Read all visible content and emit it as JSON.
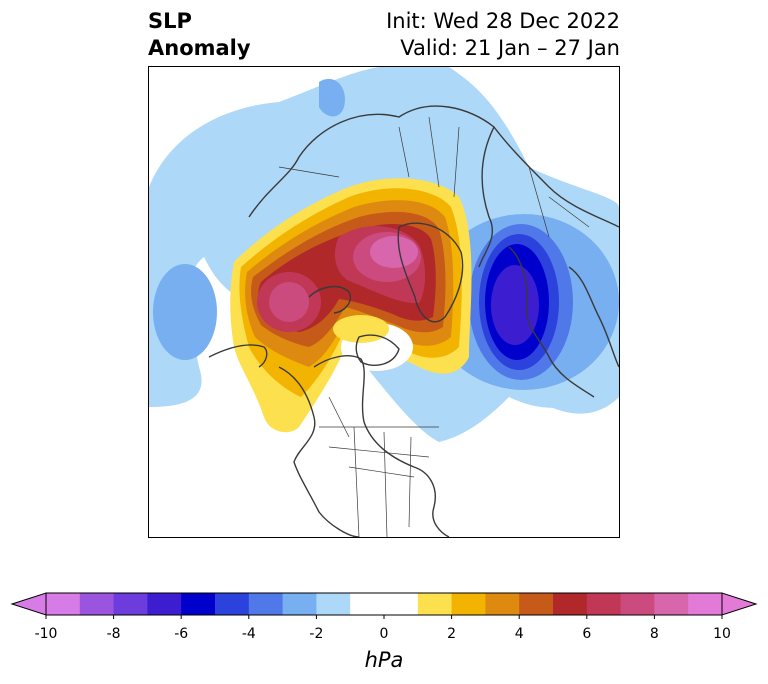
{
  "title": {
    "left_line1": "SLP",
    "left_line2": "Anomaly",
    "right_line1": "Init: Wed 28 Dec 2022",
    "right_line2": "Valid: 21 Jan – 27 Jan"
  },
  "colorbar": {
    "units": "hPa",
    "min": -10,
    "max": 10,
    "ticks": [
      "-10",
      "-8",
      "-6",
      "-4",
      "-2",
      "0",
      "2",
      "4",
      "6",
      "8",
      "10"
    ],
    "colors": [
      "#d77ce6",
      "#9b54e0",
      "#6c3cdc",
      "#3c1ed0",
      "#0000cc",
      "#2b42dc",
      "#5078e8",
      "#78aff0",
      "#aed8f8",
      "#ffffff",
      "#ffffff",
      "#fce04e",
      "#f2b400",
      "#de8a10",
      "#c65a18",
      "#b0282a",
      "#c03856",
      "#cc4b7e",
      "#d866ad",
      "#e47ad8"
    ],
    "extend_low_color": "#d77ce6",
    "extend_high_color": "#e47ad8"
  },
  "map": {
    "projection": "polar stereographic, North America centered",
    "field": "sea level pressure anomaly",
    "features": [
      {
        "name": "strong positive anomaly over Arctic / Canadian archipelago",
        "value": 9
      },
      {
        "name": "positive anomaly off Pacific Northwest / Gulf of Alaska",
        "value": 7
      },
      {
        "name": "strong negative anomaly over Scandinavia / NW Russia",
        "value": -7
      },
      {
        "name": "weak negative anomaly over North Pacific",
        "value": -3
      },
      {
        "name": "weak negative anomaly over Siberia and northeast Atlantic",
        "value": -2
      }
    ]
  }
}
